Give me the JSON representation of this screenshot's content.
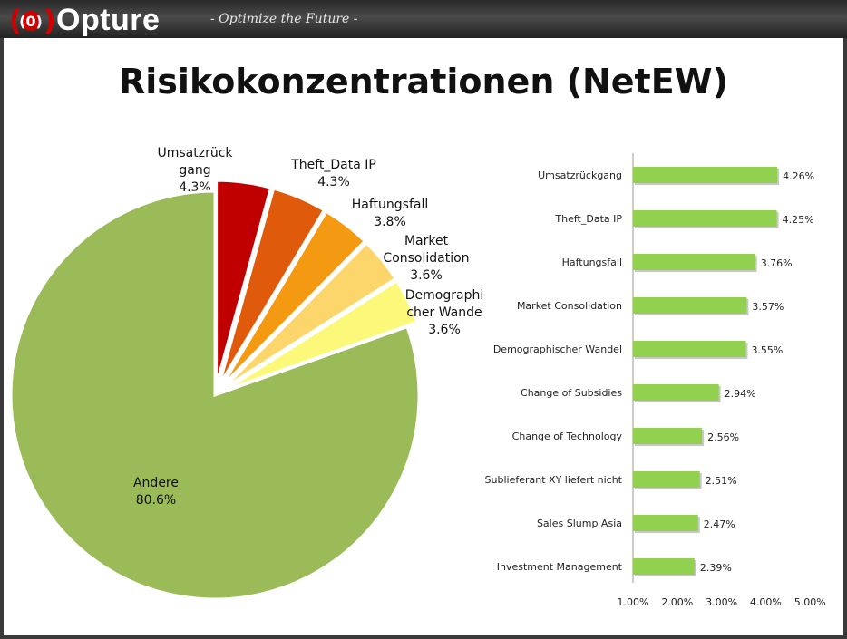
{
  "header": {
    "logo_mark": "(0)",
    "brand": "Opture",
    "tagline": "- Optimize the Future -"
  },
  "title": "Risikokonzentrationen (NetEW)",
  "colors": {
    "header_bg": "#333333",
    "pie": [
      "#c00000",
      "#e05a0c",
      "#f39a12",
      "#fcd66a",
      "#fcf97a",
      "#9bbb59"
    ],
    "bar": "#92d050"
  },
  "chart_data": [
    {
      "type": "pie",
      "title": "",
      "slices": [
        {
          "name": "Umsatzrückgang",
          "label_lines": [
            "Umsatzrück",
            "gang"
          ],
          "value": 4.3,
          "label": "4.3%"
        },
        {
          "name": "Theft_Data IP",
          "label_lines": [
            "Theft_Data IP"
          ],
          "value": 4.3,
          "label": "4.3%"
        },
        {
          "name": "Haftungsfall",
          "label_lines": [
            "Haftungsfall"
          ],
          "value": 3.8,
          "label": "3.8%"
        },
        {
          "name": "Market Consolidation",
          "label_lines": [
            "Market",
            "Consolidation"
          ],
          "value": 3.6,
          "label": "3.6%"
        },
        {
          "name": "Demographischer Wandel",
          "label_lines": [
            "Demographi",
            "cher Wande"
          ],
          "value": 3.6,
          "label": "3.6%"
        },
        {
          "name": "Andere",
          "label_lines": [
            "Andere"
          ],
          "value": 80.6,
          "label": "80.6%"
        }
      ]
    },
    {
      "type": "bar",
      "orientation": "horizontal",
      "categories": [
        "Umsatzrückgang",
        "Theft_Data IP",
        "Haftungsfall",
        "Market Consolidation",
        "Demographischer Wandel",
        "Change of Subsidies",
        "Change of Technology",
        "Sublieferant XY liefert nicht",
        "Sales Slump Asia",
        "Investment Management"
      ],
      "values": [
        4.26,
        4.25,
        3.76,
        3.57,
        3.55,
        2.94,
        2.56,
        2.51,
        2.47,
        2.39
      ],
      "value_labels": [
        "4.26%",
        "4.25%",
        "3.76%",
        "3.57%",
        "3.55%",
        "2.94%",
        "2.56%",
        "2.51%",
        "2.47%",
        "2.39%"
      ],
      "xlim": [
        1.0,
        5.0
      ],
      "xticks": [
        1.0,
        2.0,
        3.0,
        4.0,
        5.0
      ],
      "xtick_labels": [
        "1.00%",
        "2.00%",
        "3.00%",
        "4.00%",
        "5.00%"
      ],
      "grid": false
    }
  ]
}
